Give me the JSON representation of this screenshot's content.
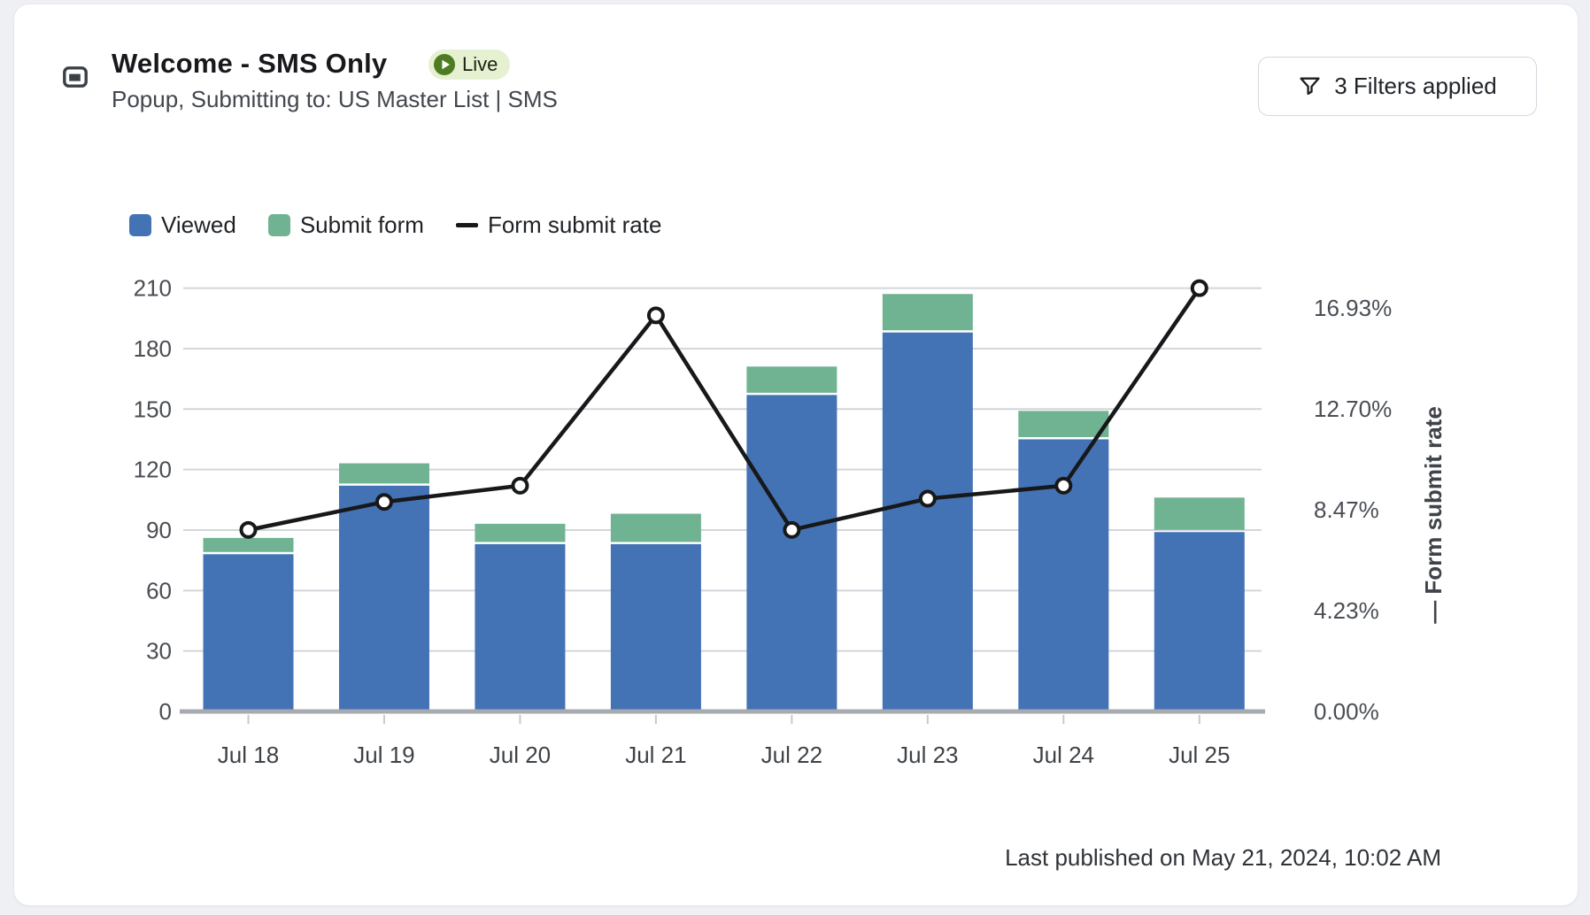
{
  "header": {
    "title": "Welcome - SMS Only",
    "subtitle": "Popup, Submitting to: US Master List | SMS",
    "status_badge": {
      "label": "Live",
      "icon": "play-icon",
      "bg_color": "#e5f1d0",
      "dot_color": "#4e7c22"
    },
    "type_icon": "popup-window-icon",
    "filters_button": {
      "label": "3 Filters applied",
      "icon": "filter-funnel-icon"
    }
  },
  "legend": [
    {
      "label": "Viewed",
      "swatch": "#4473b5",
      "marker": "square"
    },
    {
      "label": "Submit form",
      "swatch": "#70b392",
      "marker": "square"
    },
    {
      "label": "Form submit rate",
      "swatch": "#17181a",
      "marker": "line"
    }
  ],
  "chart_data": {
    "type": "bar",
    "subtype": "stacked-bars-with-line-overlay",
    "categories": [
      "Jul 18",
      "Jul 19",
      "Jul 20",
      "Jul 21",
      "Jul 22",
      "Jul 23",
      "Jul 24",
      "Jul 25"
    ],
    "series": [
      {
        "name": "Viewed",
        "type": "bar",
        "stack": 0,
        "color": "#4473b5",
        "values": [
          78,
          112,
          83,
          83,
          157,
          188,
          135,
          89
        ]
      },
      {
        "name": "Submit form",
        "type": "bar",
        "stack": 1,
        "color": "#70b392",
        "values": [
          7,
          10,
          9,
          14,
          13,
          18,
          13,
          16
        ]
      },
      {
        "name": "Form submit rate",
        "type": "line",
        "axis": "right",
        "color": "#17181a",
        "marker": "open-circle",
        "values_pct": [
          7.26,
          8.38,
          9.03,
          15.84,
          7.26,
          8.51,
          9.03,
          16.93
        ]
      }
    ],
    "left_axis": {
      "min": 0,
      "max": 210,
      "tick_labels": [
        "0",
        "30",
        "60",
        "90",
        "120",
        "150",
        "180",
        "210"
      ]
    },
    "right_axis": {
      "tick_labels": [
        "0.00%",
        "4.23%",
        "8.47%",
        "12.70%",
        "16.93%"
      ],
      "max_pct": 16.93,
      "rotated_label": "— Form submit rate"
    },
    "grid": true,
    "legend_position": "top",
    "colors": {
      "gridline": "#d3d6da",
      "baseline": "#a7aaae",
      "tick": "#c6c9cd",
      "axis_text": "#4a4e54",
      "category_text": "#3e4247",
      "rotated_label_text": "#3f434a"
    }
  },
  "footer": {
    "last_published": "Last published on May 21, 2024, 10:02 AM"
  }
}
